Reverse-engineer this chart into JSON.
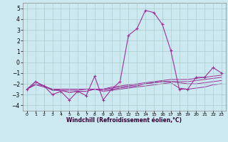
{
  "x": [
    0,
    1,
    2,
    3,
    4,
    5,
    6,
    7,
    8,
    9,
    10,
    11,
    12,
    13,
    14,
    15,
    16,
    17,
    18,
    19,
    20,
    21,
    22,
    23
  ],
  "line_main": [
    -2.5,
    -1.8,
    -2.2,
    -3.0,
    -2.7,
    -3.5,
    -2.7,
    -3.1,
    -1.3,
    -3.5,
    -2.5,
    -1.8,
    2.5,
    3.1,
    4.8,
    4.6,
    3.5,
    1.1,
    -2.5,
    -2.5,
    -1.4,
    -1.4,
    -0.5,
    -1.0
  ],
  "line2": [
    -2.5,
    -1.8,
    -2.2,
    -2.5,
    -2.5,
    -2.5,
    -2.5,
    -2.5,
    -2.5,
    -2.5,
    -2.3,
    -2.2,
    -2.1,
    -2.0,
    -1.9,
    -1.8,
    -1.7,
    -1.6,
    -1.6,
    -1.6,
    -1.5,
    -1.4,
    -1.3,
    -1.2
  ],
  "line3": [
    -2.5,
    -2.1,
    -2.3,
    -2.5,
    -2.6,
    -2.6,
    -2.6,
    -2.5,
    -2.5,
    -2.5,
    -2.4,
    -2.3,
    -2.2,
    -2.1,
    -2.0,
    -1.9,
    -1.8,
    -1.8,
    -1.8,
    -1.8,
    -1.7,
    -1.6,
    -1.5,
    -1.4
  ],
  "line4": [
    -2.5,
    -2.0,
    -2.2,
    -2.6,
    -2.6,
    -2.8,
    -2.7,
    -2.7,
    -2.5,
    -2.6,
    -2.5,
    -2.4,
    -2.3,
    -2.2,
    -2.0,
    -1.9,
    -1.8,
    -1.8,
    -1.9,
    -2.0,
    -2.0,
    -1.9,
    -1.8,
    -1.7
  ],
  "line5": [
    -2.5,
    -2.0,
    -2.2,
    -2.6,
    -2.6,
    -2.8,
    -2.7,
    -2.7,
    -2.5,
    -2.7,
    -2.6,
    -2.5,
    -2.4,
    -2.3,
    -2.2,
    -2.1,
    -2.0,
    -1.9,
    -2.4,
    -2.5,
    -2.4,
    -2.3,
    -2.1,
    -2.0
  ],
  "color": "#993399",
  "bg_color": "#cce8f0",
  "grid_color": "#aacccc",
  "ylabel_ticks": [
    -4,
    -3,
    -2,
    -1,
    0,
    1,
    2,
    3,
    4,
    5
  ],
  "xlabel": "Windchill (Refroidissement éolien,°C)",
  "xlim": [
    -0.5,
    23.5
  ],
  "ylim": [
    -4.5,
    5.5
  ]
}
